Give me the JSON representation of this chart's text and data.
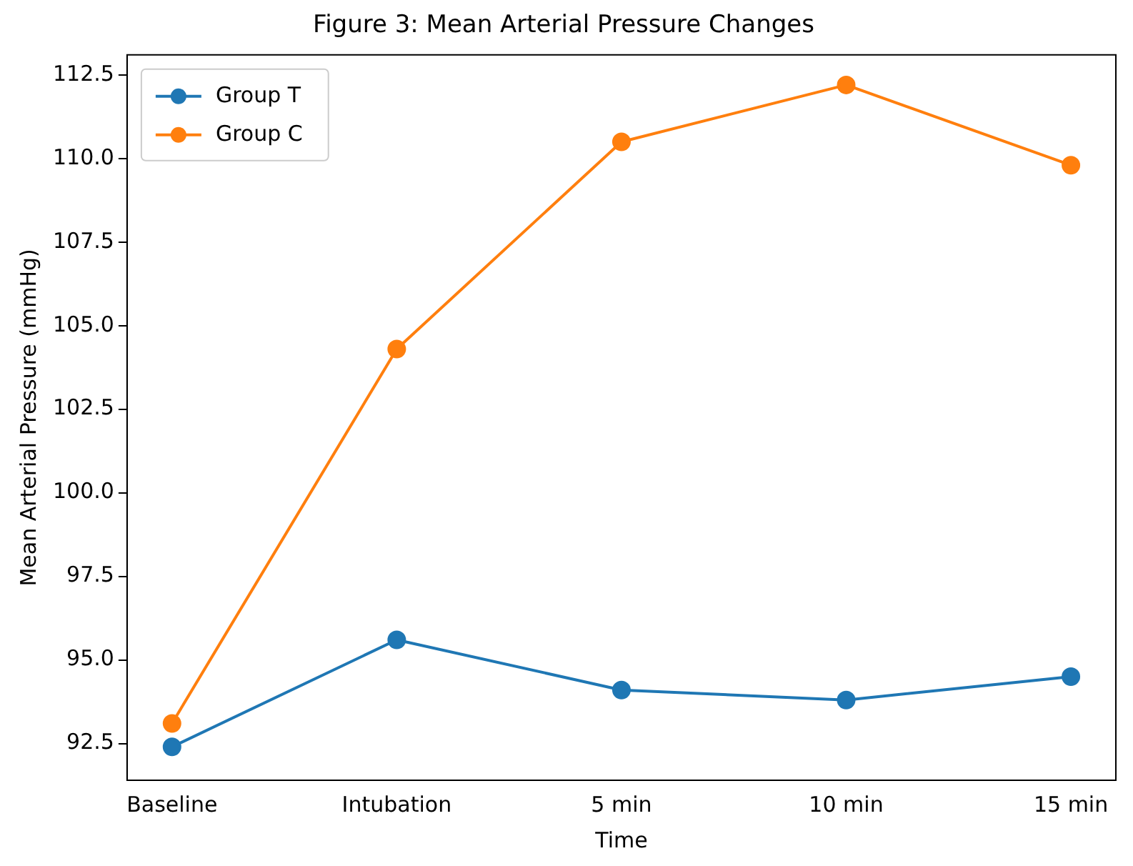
{
  "chart_data": {
    "type": "line",
    "title": "Figure 3: Mean Arterial Pressure Changes",
    "xlabel": "Time",
    "ylabel": "Mean Arterial Pressure (mmHg)",
    "categories": [
      "Baseline",
      "Intubation",
      "5 min",
      "10 min",
      "15 min"
    ],
    "series": [
      {
        "name": "Group T",
        "color": "#1f77b4",
        "values": [
          92.4,
          95.6,
          94.1,
          93.8,
          94.5
        ]
      },
      {
        "name": "Group C",
        "color": "#ff7f0e",
        "values": [
          93.1,
          104.3,
          110.5,
          112.2,
          109.8
        ]
      }
    ],
    "ylim": [
      91.4,
      113.1
    ],
    "yticks": [
      {
        "value": 92.5,
        "label": "92.5"
      },
      {
        "value": 95,
        "label": "95.0"
      },
      {
        "value": 97.5,
        "label": "97.5"
      },
      {
        "value": 100,
        "label": "100.0"
      },
      {
        "value": 102.5,
        "label": "102.5"
      },
      {
        "value": 105,
        "label": "105.0"
      },
      {
        "value": 107.5,
        "label": "107.5"
      },
      {
        "value": 110,
        "label": "110.0"
      },
      {
        "value": 112.5,
        "label": "112.5"
      }
    ],
    "grid": false,
    "legend": "top left",
    "marker": "circle",
    "line_style": "solid"
  }
}
